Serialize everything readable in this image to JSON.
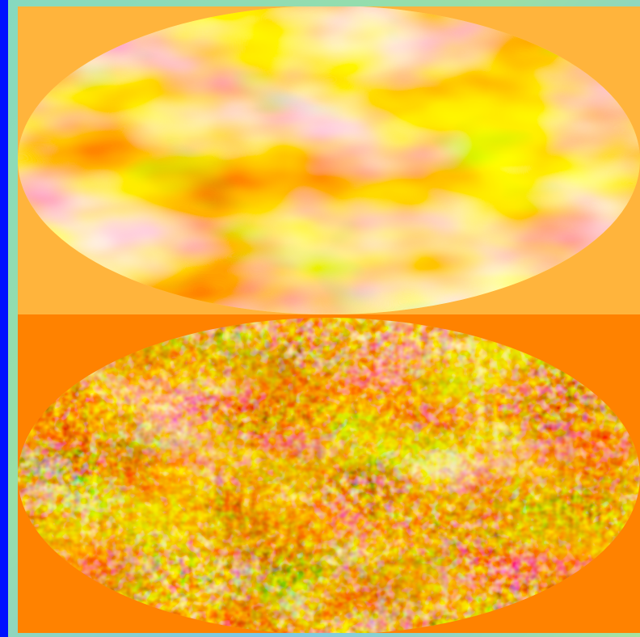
{
  "figure": {
    "panels": [
      {
        "id": "low-resolution-sky-map",
        "projection": "mollweide",
        "background_color": "#FFB43C",
        "colormap": [
          "#5a0a00",
          "#b33d00",
          "#ff8a00",
          "#ffd24a",
          "#fffde8"
        ]
      },
      {
        "id": "high-resolution-sky-map",
        "projection": "mollweide",
        "background_color": "#FF8200",
        "colormap": [
          "#3a0500",
          "#9a2c00",
          "#e07000",
          "#ffc94a",
          "#fff6d0"
        ]
      }
    ],
    "frame_color": "#7FD8C6",
    "left_bar_color": "#0010FF"
  }
}
